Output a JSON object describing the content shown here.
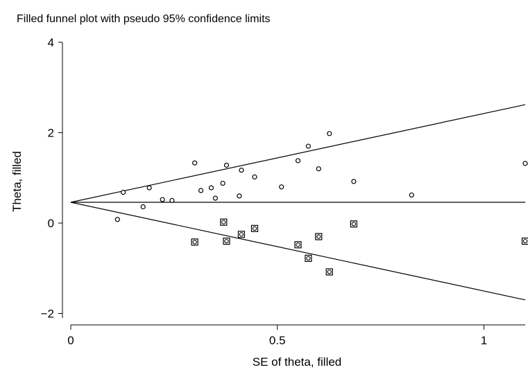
{
  "chart_data": {
    "type": "scatter",
    "title": "Filled funnel plot with pseudo 95% confidence limits",
    "xlabel": "SE of theta, filled",
    "ylabel": "Theta, filled",
    "xlim": [
      0,
      1.1
    ],
    "ylim": [
      -2.1,
      4.2
    ],
    "x_ticks": [
      0,
      0.5,
      1
    ],
    "x_tick_labels": [
      "0",
      "0.5",
      "1"
    ],
    "y_ticks": [
      -2,
      0,
      2,
      4
    ],
    "y_tick_labels": [
      "−2",
      "0",
      "2",
      "4"
    ],
    "grid": false,
    "legend": "none",
    "pooled_estimate": 0.46,
    "lines": [
      {
        "name": "",
        "points": [
          [
            0,
            0.46
          ],
          [
            1.1,
            0.46
          ]
        ]
      },
      {
        "name": "",
        "points": [
          [
            0,
            0.46
          ],
          [
            1.1,
            2.62
          ]
        ]
      },
      {
        "name": "",
        "points": [
          [
            0,
            0.46
          ],
          [
            1.1,
            -1.7
          ]
        ]
      }
    ],
    "series": [
      {
        "name": "",
        "marker": "circle",
        "points": [
          [
            0.113,
            0.08
          ],
          [
            0.127,
            0.68
          ],
          [
            0.175,
            0.36
          ],
          [
            0.19,
            0.78
          ],
          [
            0.222,
            0.52
          ],
          [
            0.245,
            0.5
          ],
          [
            0.3,
            1.33
          ],
          [
            0.315,
            0.72
          ],
          [
            0.34,
            0.78
          ],
          [
            0.35,
            0.55
          ],
          [
            0.368,
            0.88
          ],
          [
            0.377,
            1.28
          ],
          [
            0.408,
            0.6
          ],
          [
            0.413,
            1.17
          ],
          [
            0.445,
            1.02
          ],
          [
            0.51,
            0.8
          ],
          [
            0.55,
            1.38
          ],
          [
            0.575,
            1.7
          ],
          [
            0.6,
            1.2
          ],
          [
            0.626,
            1.98
          ],
          [
            0.685,
            0.92
          ],
          [
            0.825,
            0.62
          ],
          [
            1.1,
            1.32
          ]
        ]
      },
      {
        "name": "",
        "marker": "boxed-circle",
        "points": [
          [
            0.3,
            -0.42
          ],
          [
            0.37,
            0.02
          ],
          [
            0.377,
            -0.4
          ],
          [
            0.413,
            -0.25
          ],
          [
            0.445,
            -0.12
          ],
          [
            0.55,
            -0.48
          ],
          [
            0.575,
            -0.78
          ],
          [
            0.6,
            -0.3
          ],
          [
            0.626,
            -1.08
          ],
          [
            0.685,
            -0.02
          ],
          [
            1.1,
            -0.4
          ]
        ]
      }
    ]
  }
}
